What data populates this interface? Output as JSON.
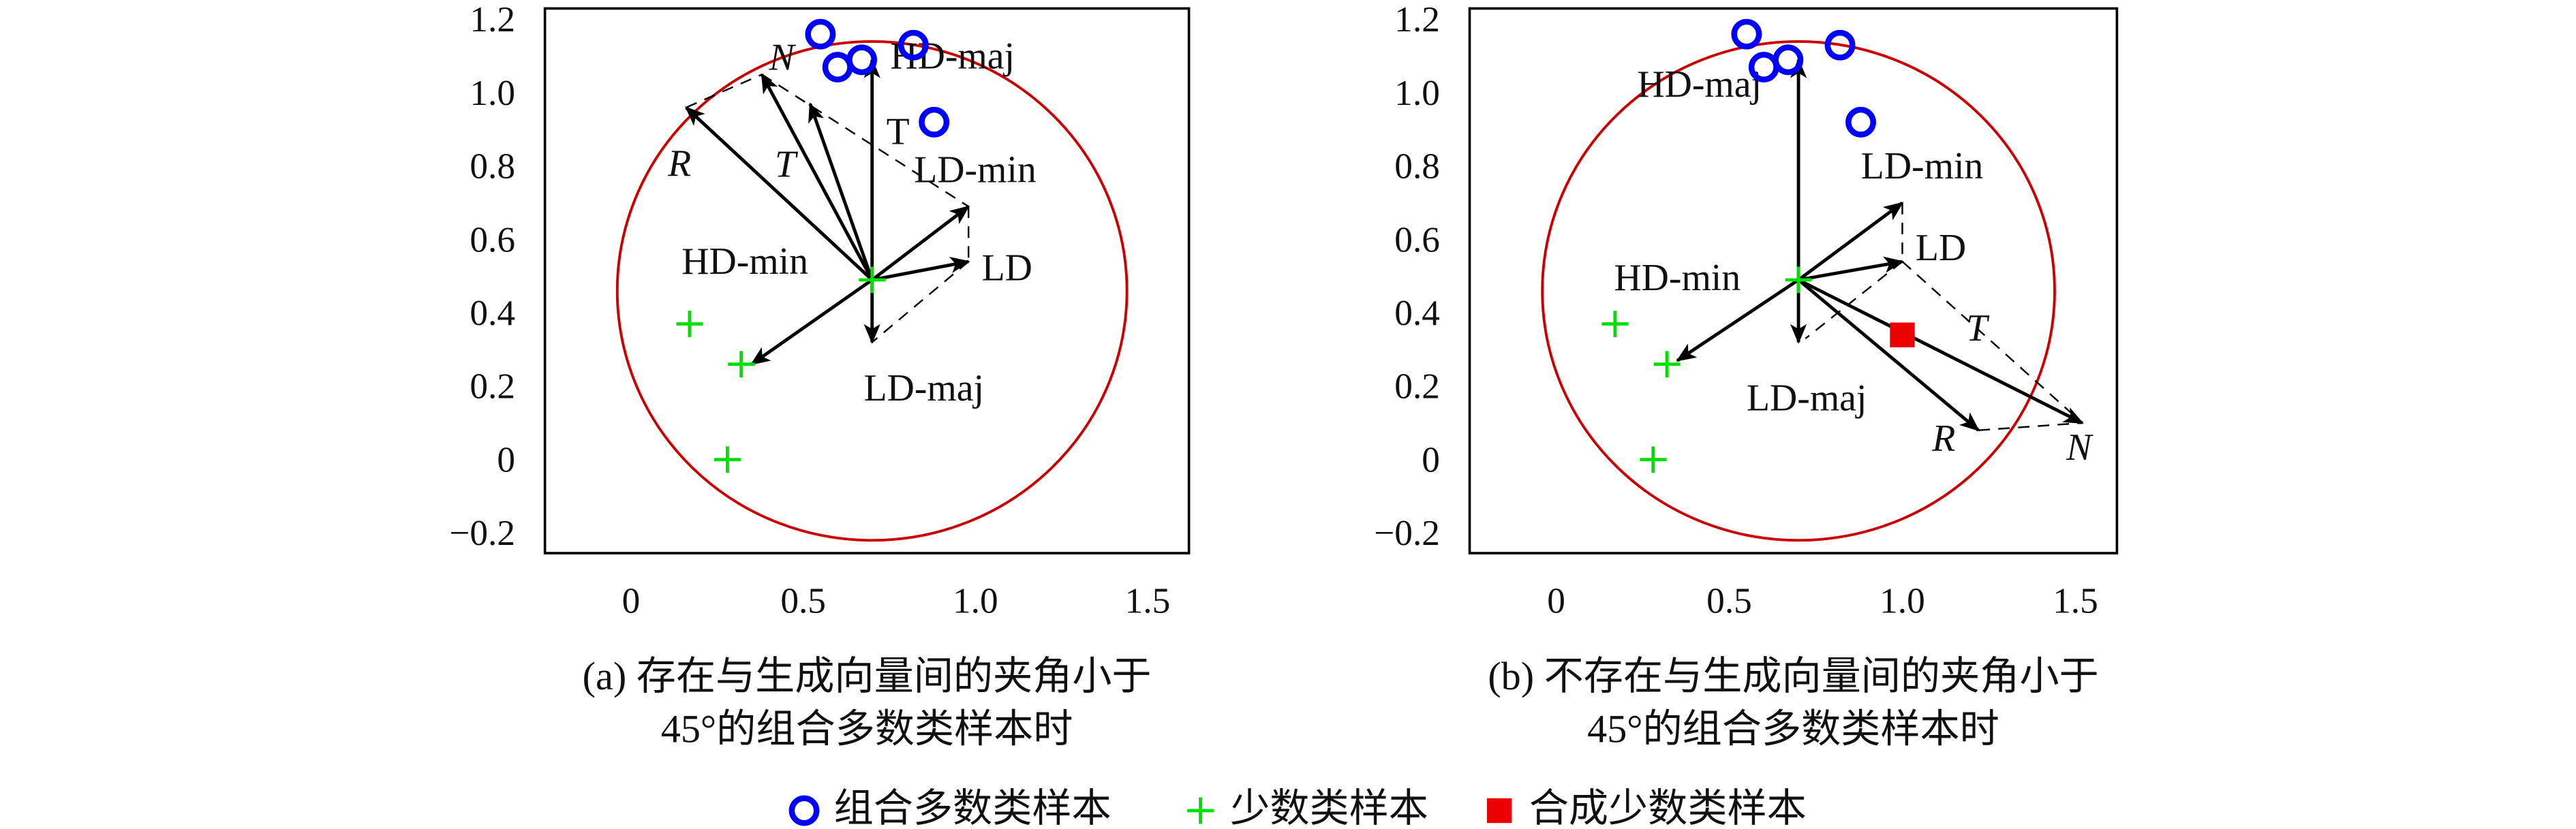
{
  "chart_data": [
    {
      "type": "vector-scatter",
      "caption": [
        "(a) 存在与生成向量间的夹角小于",
        "45°的组合多数类样本时"
      ],
      "xlim": [
        -0.25,
        1.62
      ],
      "ylim": [
        -0.245,
        1.24
      ],
      "xticks": [
        0,
        0.5,
        {
          "value": 1,
          "label": "1.0"
        },
        1.5
      ],
      "yticks": [
        {
          "value": -0.2,
          "label": "−0.2"
        },
        0,
        0.2,
        0.4,
        0.6,
        0.8,
        {
          "value": 1,
          "label": "1.0"
        },
        1.2
      ],
      "series": [
        {
          "marker": "circle",
          "color": "#0000ff",
          "x": [
            0.55,
            0.6,
            0.67,
            0.82,
            0.88
          ],
          "y": [
            1.17,
            1.08,
            1.1,
            1.14,
            0.93
          ]
        },
        {
          "marker": "plus",
          "color": "#00e000",
          "x": [
            0.17,
            0.32,
            0.28,
            0.7
          ],
          "y": [
            0.38,
            0.27,
            0.01,
            0.5
          ]
        }
      ],
      "circle": {
        "color": "#cc0000",
        "cx": 0.7,
        "cy": 0.47,
        "rx": 0.74,
        "ry": 0.68
      },
      "origin": [
        0.7,
        0.5
      ],
      "vectors": [
        {
          "label": "HD-maj",
          "x": 0.7,
          "y": 1.1
        },
        {
          "label": "LD-min",
          "x": 0.98,
          "y": 0.7
        },
        {
          "label": "LD",
          "x": 0.98,
          "y": 0.55
        },
        {
          "label": "LD-maj",
          "x": 0.7,
          "y": 0.33
        },
        {
          "label": "HD-min",
          "x": 0.35,
          "y": 0.27
        },
        {
          "label": "T",
          "x": 0.52,
          "y": 0.98,
          "italic": true
        },
        {
          "label": "N",
          "x": 0.38,
          "y": 1.06,
          "italic": true
        },
        {
          "label": "R",
          "x": 0.16,
          "y": 0.97,
          "italic": true
        }
      ],
      "guides": [
        [
          0.16,
          0.97,
          0.38,
          1.06
        ],
        [
          0.38,
          1.06,
          0.98,
          0.7
        ],
        [
          0.98,
          0.7,
          0.98,
          0.55
        ],
        [
          0.98,
          0.55,
          0.7,
          0.33
        ]
      ],
      "annotations": [
        {
          "text": "T",
          "x": 0.775,
          "y": 0.894
        }
      ]
    },
    {
      "type": "vector-scatter",
      "caption": [
        "(b) 不存在与生成向量间的夹角小于",
        "45°的组合多数类样本时"
      ],
      "xlim": [
        -0.25,
        1.62
      ],
      "ylim": [
        -0.245,
        1.24
      ],
      "xticks": [
        0,
        0.5,
        {
          "value": 1,
          "label": "1.0"
        },
        1.5
      ],
      "yticks": [
        {
          "value": -0.2,
          "label": "−0.2"
        },
        0,
        0.2,
        0.4,
        0.6,
        0.8,
        {
          "value": 1,
          "label": "1.0"
        },
        1.2
      ],
      "series": [
        {
          "marker": "circle",
          "color": "#0000ff",
          "x": [
            0.55,
            0.6,
            0.67,
            0.82,
            0.88
          ],
          "y": [
            1.17,
            1.08,
            1.1,
            1.14,
            0.93
          ]
        },
        {
          "marker": "plus",
          "color": "#00e000",
          "x": [
            0.17,
            0.32,
            0.28,
            0.7
          ],
          "y": [
            0.38,
            0.27,
            0.01,
            0.5
          ]
        },
        {
          "marker": "square",
          "color": "#ee0000",
          "x": [
            1.0
          ],
          "y": [
            0.35
          ]
        }
      ],
      "circle": {
        "color": "#cc0000",
        "cx": 0.7,
        "cy": 0.47,
        "rx": 0.74,
        "ry": 0.68
      },
      "origin": [
        0.7,
        0.5
      ],
      "vectors": [
        {
          "label": "HD-maj",
          "x": 0.7,
          "y": 1.1
        },
        {
          "label": "LD-min",
          "x": 1.0,
          "y": 0.71
        },
        {
          "label": "LD",
          "x": 1.0,
          "y": 0.55
        },
        {
          "label": "LD-maj",
          "x": 0.7,
          "y": 0.33
        },
        {
          "label": "HD-min",
          "x": 0.35,
          "y": 0.28
        },
        {
          "label": "R",
          "x": 1.22,
          "y": 0.09,
          "italic": true
        },
        {
          "label": "N",
          "x": 1.52,
          "y": 0.11,
          "italic": true
        }
      ],
      "guides": [
        [
          1.0,
          0.71,
          1.0,
          0.55
        ],
        [
          1.0,
          0.55,
          0.72,
          0.34
        ],
        [
          1.0,
          0.55,
          1.52,
          0.11
        ],
        [
          1.22,
          0.09,
          1.52,
          0.11
        ]
      ],
      "annotations": [
        {
          "text": "T",
          "x": 1.215,
          "y": 0.358,
          "italic": true
        }
      ]
    }
  ],
  "legend": [
    {
      "name": "组合多数类样本",
      "marker": "circle",
      "color": "#0000ff"
    },
    {
      "name": "少数类样本",
      "marker": "plus",
      "color": "#00e000"
    },
    {
      "name": "合成少数类样本",
      "marker": "square",
      "color": "#ee0000"
    }
  ]
}
